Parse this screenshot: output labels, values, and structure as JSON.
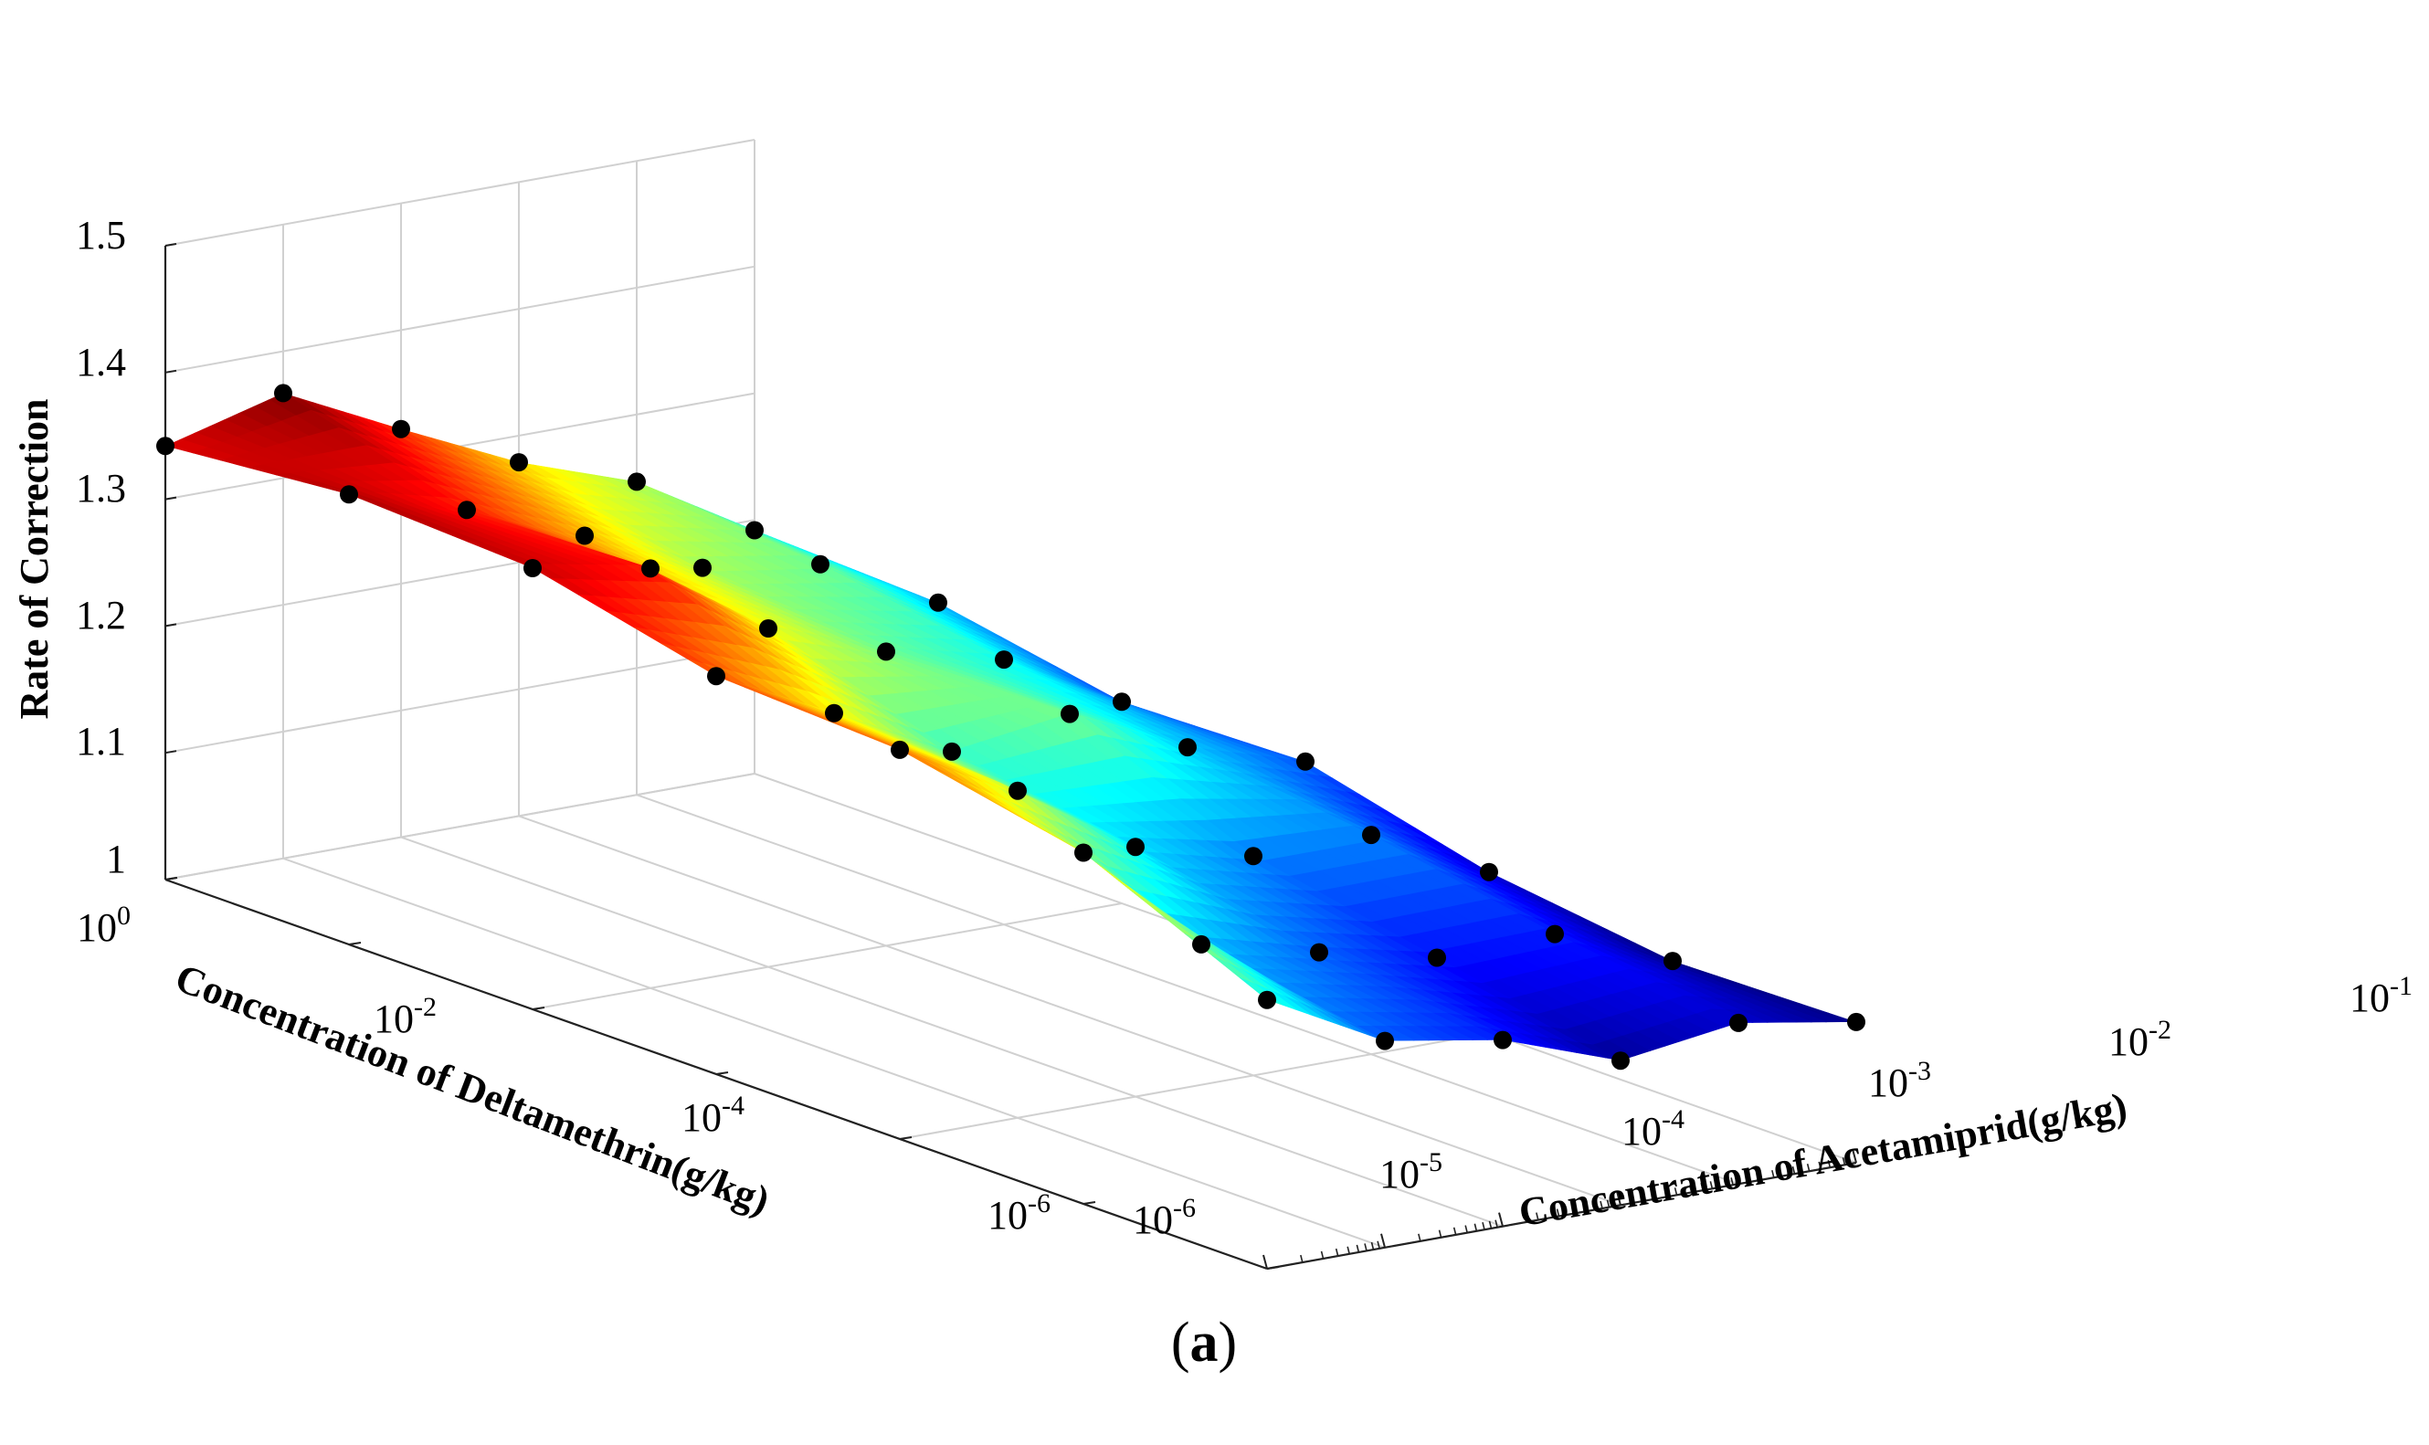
{
  "chart_data": {
    "type": "surface",
    "title": "",
    "caption": {
      "open": "(",
      "letter": "a",
      "close": ")"
    },
    "xlabel": "Concentration of Acetamiprid(g/kg)",
    "ylabel": "Concentration of Deltamethrin(g/kg)",
    "zlabel": "Rate of Correction",
    "x_scale": "log",
    "y_scale": "log",
    "xlim": [
      1e-06,
      0.1
    ],
    "ylim": [
      1e-06,
      1
    ],
    "zlim": [
      1,
      1.5
    ],
    "x_ticks": [
      {
        "base": "10",
        "exp": "-6",
        "value": -6
      },
      {
        "base": "10",
        "exp": "-5",
        "value": -5
      },
      {
        "base": "10",
        "exp": "-4",
        "value": -4
      },
      {
        "base": "10",
        "exp": "-3",
        "value": -3
      },
      {
        "base": "10",
        "exp": "-2",
        "value": -2
      },
      {
        "base": "10",
        "exp": "-1",
        "value": -1
      }
    ],
    "y_ticks": [
      {
        "base": "10",
        "exp": "-6",
        "value": -6
      },
      {
        "base": "10",
        "exp": "-4",
        "value": -4
      },
      {
        "base": "10",
        "exp": "-2",
        "value": -2
      },
      {
        "base": "10",
        "exp": "0",
        "value": 0
      }
    ],
    "z_ticks": [
      "1",
      "1.1",
      "1.2",
      "1.3",
      "1.4",
      "1.5"
    ],
    "grid": true,
    "colormap": "jet",
    "colorbar": false,
    "x_levels_log10": [
      -6,
      -5,
      -4,
      -3,
      -2,
      -1
    ],
    "y_levels_log10": [
      0,
      -1,
      -2,
      -3,
      -4,
      -5,
      -6
    ],
    "z_grid": [
      [
        1.342,
        1.355,
        1.348,
        1.314,
        1.307,
        1.277,
        1.212
      ],
      [
        1.367,
        1.326,
        1.331,
        1.268,
        1.258,
        1.188,
        1.163
      ],
      [
        1.322,
        1.289,
        1.267,
        1.221,
        1.197,
        1.165,
        1.147
      ],
      [
        1.279,
        1.247,
        1.232,
        1.234,
        1.173,
        1.144,
        1.114
      ],
      [
        1.247,
        1.233,
        1.209,
        1.191,
        1.173,
        1.146,
        1.127
      ],
      [
        1.192,
        1.186,
        1.159,
        1.163,
        1.127,
        1.108,
        1.111
      ]
    ]
  }
}
